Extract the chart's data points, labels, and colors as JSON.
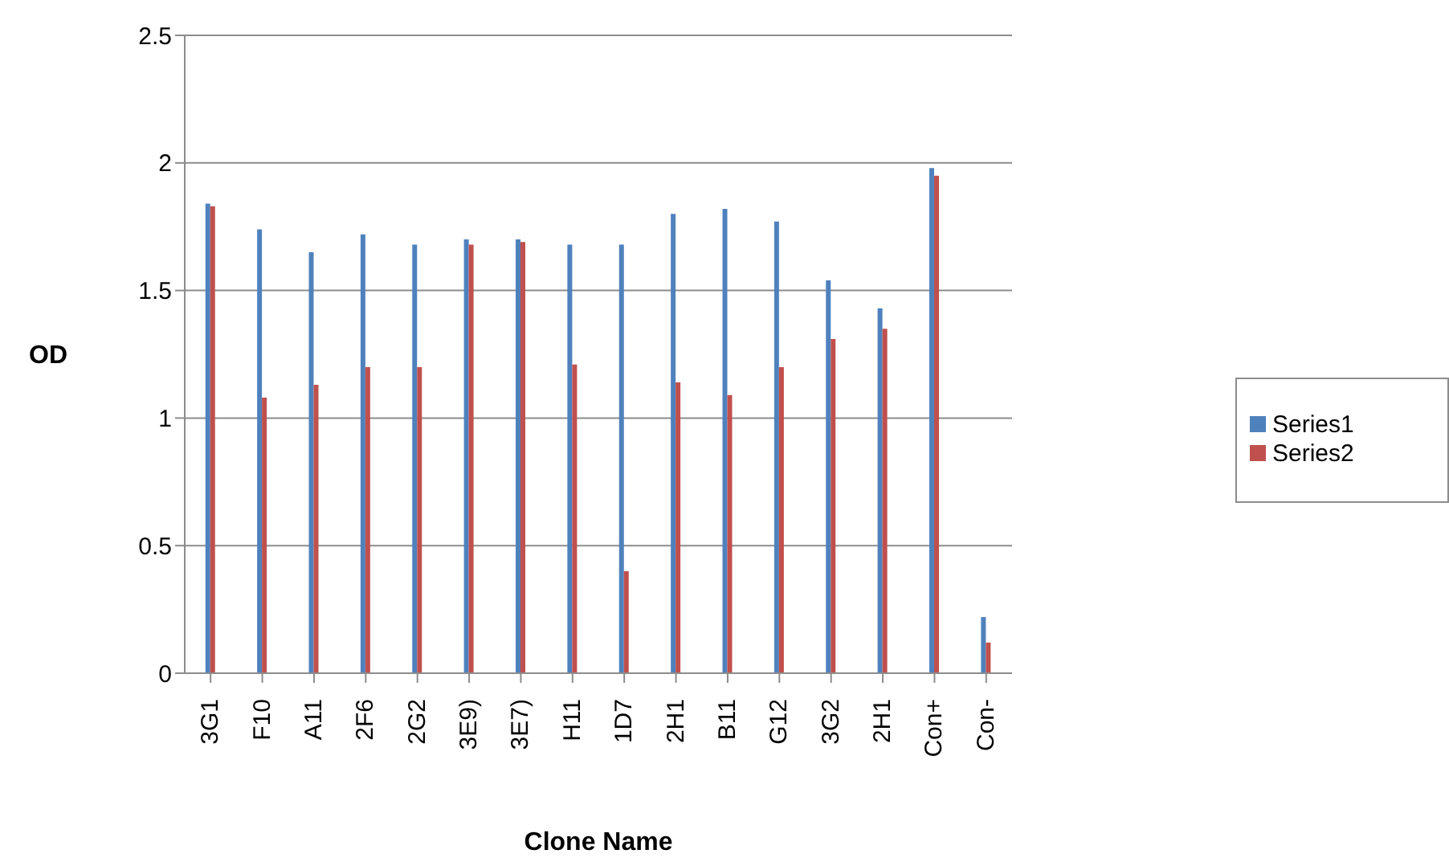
{
  "chart_data": {
    "type": "bar",
    "xlabel": "Clone Name",
    "ylabel": "OD",
    "categories": [
      "3G1",
      "F10",
      "A11",
      "2F6",
      "2G2",
      "3E9)",
      "3E7)",
      "H11",
      "1D7",
      "2H1",
      "B11",
      "G12",
      "3G2",
      "2H1",
      "Con+",
      "Con-"
    ],
    "series": [
      {
        "name": "Series1",
        "color": "#4f81bd",
        "values": [
          1.84,
          1.74,
          1.65,
          1.72,
          1.68,
          1.7,
          1.7,
          1.68,
          1.68,
          1.8,
          1.82,
          1.77,
          1.54,
          1.43,
          1.98,
          0.22
        ]
      },
      {
        "name": "Series2",
        "color": "#c0504d",
        "values": [
          1.83,
          1.08,
          1.13,
          1.2,
          1.2,
          1.68,
          1.69,
          1.21,
          0.4,
          1.14,
          1.09,
          1.2,
          1.31,
          1.35,
          1.95,
          0.12
        ]
      }
    ],
    "ylim": [
      0,
      2.5
    ],
    "yticks": [
      0,
      0.5,
      1,
      1.5,
      2,
      2.5
    ],
    "grid": "y",
    "legend": "right"
  }
}
